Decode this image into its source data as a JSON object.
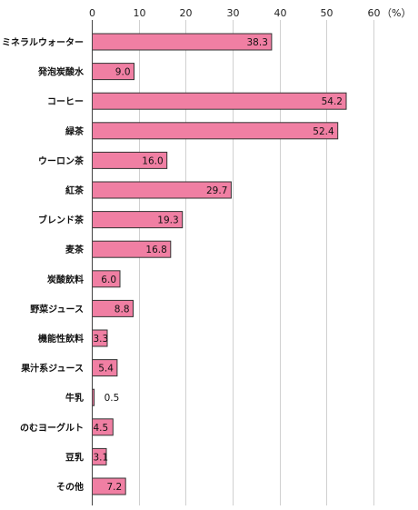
{
  "chart_data": {
    "type": "bar",
    "orientation": "horizontal",
    "title": "",
    "xlabel": "",
    "ylabel": "",
    "unit": "（%）",
    "xlim": [
      0,
      60
    ],
    "xticks": [
      "0",
      "10",
      "20",
      "30",
      "40",
      "50",
      "60"
    ],
    "grid": true,
    "bar_color": "#f07fa3",
    "categories": [
      "ミネラルウォーター",
      "発泡炭酸水",
      "コーヒー",
      "緑茶",
      "ウーロン茶",
      "紅茶",
      "ブレンド茶",
      "麦茶",
      "炭酸飲料",
      "野菜ジュース",
      "機能性飲料",
      "果汁系ジュース",
      "牛乳",
      "のむヨーグルト",
      "豆乳",
      "その他"
    ],
    "values": [
      38.3,
      9.0,
      54.2,
      52.4,
      16.0,
      29.7,
      19.3,
      16.8,
      6.0,
      8.8,
      3.3,
      5.4,
      0.5,
      4.5,
      3.1,
      7.2
    ],
    "value_labels": [
      "38.3",
      "9.0",
      "54.2",
      "52.4",
      "16.0",
      "29.7",
      "19.3",
      "16.8",
      "6.0",
      "8.8",
      "3.3",
      "5.4",
      "0.5",
      "4.5",
      "3.1",
      "7.2"
    ]
  }
}
